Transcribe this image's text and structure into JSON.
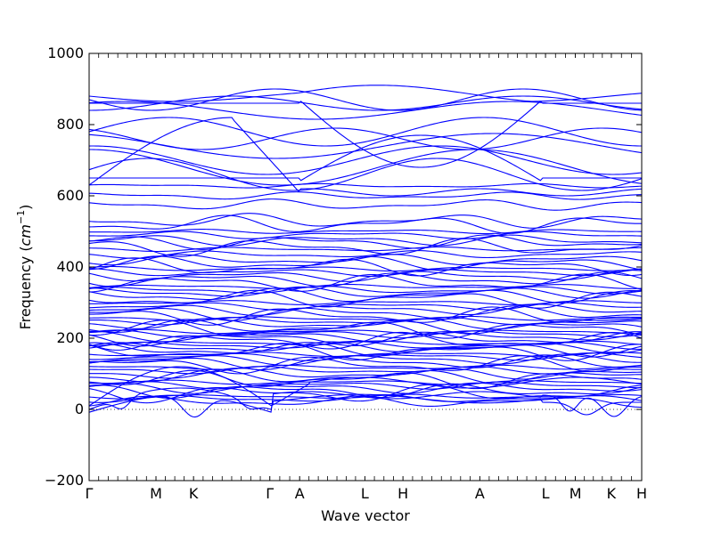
{
  "chart_data": {
    "type": "line",
    "title": "",
    "xlabel": "Wave vector",
    "ylabel_text": "Frequency (",
    "ylabel_unit_base": "cm",
    "ylabel_unit_exp": "−1",
    "ylabel_close": ")",
    "ylim": [
      -200,
      1000
    ],
    "yticks": [
      -200,
      0,
      200,
      400,
      600,
      800,
      1000
    ],
    "ytick_labels": [
      "−200",
      "0",
      "200",
      "400",
      "600",
      "800",
      "1000"
    ],
    "x_range": [
      0,
      1
    ],
    "high_symmetry_points": [
      {
        "label": "Γ",
        "x": 0.0
      },
      {
        "label": "M",
        "x": 0.121
      },
      {
        "label": "K",
        "x": 0.189
      },
      {
        "label": "Γ",
        "x": 0.327
      },
      {
        "label": "A",
        "x": 0.381
      },
      {
        "label": "L",
        "x": 0.499
      },
      {
        "label": "H",
        "x": 0.568
      },
      {
        "label": "A",
        "x": 0.707
      },
      {
        "label": "L",
        "x": 0.826
      },
      {
        "label": "M",
        "x": 0.88
      },
      {
        "label": "K",
        "x": 0.945
      },
      {
        "label": "H",
        "x": 1.0
      }
    ],
    "zero_line": true,
    "line_color": "#0000ff",
    "series_flat_levels": [
      628,
      600,
      575,
      530,
      520,
      500,
      490,
      475,
      470,
      455,
      450,
      435,
      420,
      410,
      400,
      395,
      385,
      375,
      365,
      355,
      345,
      335,
      328,
      320,
      310,
      300,
      290,
      280,
      270,
      262,
      255,
      248,
      240,
      232,
      225,
      218,
      212,
      205,
      198,
      192,
      186,
      180,
      174,
      168,
      162,
      155,
      148,
      140,
      132,
      125,
      118,
      110,
      100,
      92,
      84,
      76,
      68,
      60,
      52,
      44,
      36,
      30,
      22
    ]
  }
}
